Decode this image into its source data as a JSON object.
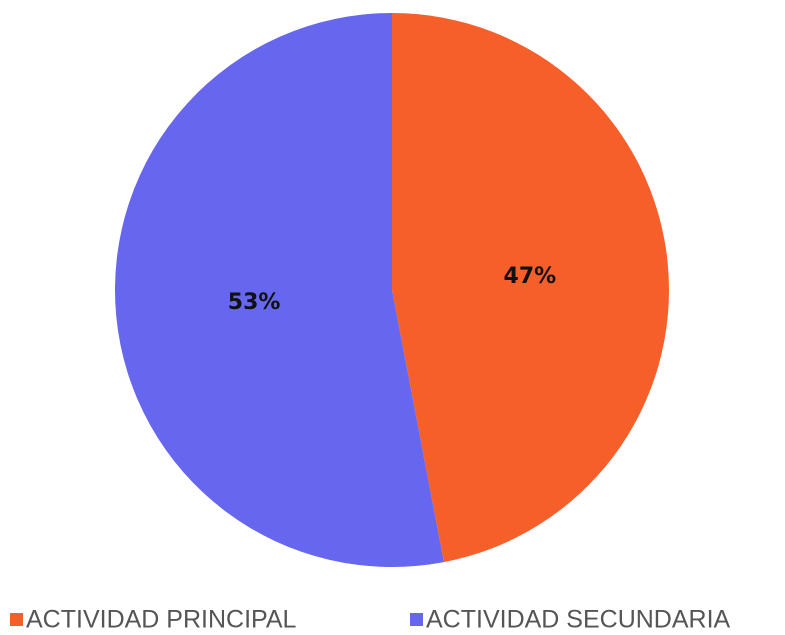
{
  "chart_data": {
    "type": "pie",
    "categories": [
      "ACTIVIDAD PRINCIPAL",
      "ACTIVIDAD SECUNDARIA"
    ],
    "values": [
      47,
      53
    ],
    "value_labels": [
      "47%",
      "53%"
    ],
    "colors": [
      "#f65f2a",
      "#6666ee"
    ]
  }
}
